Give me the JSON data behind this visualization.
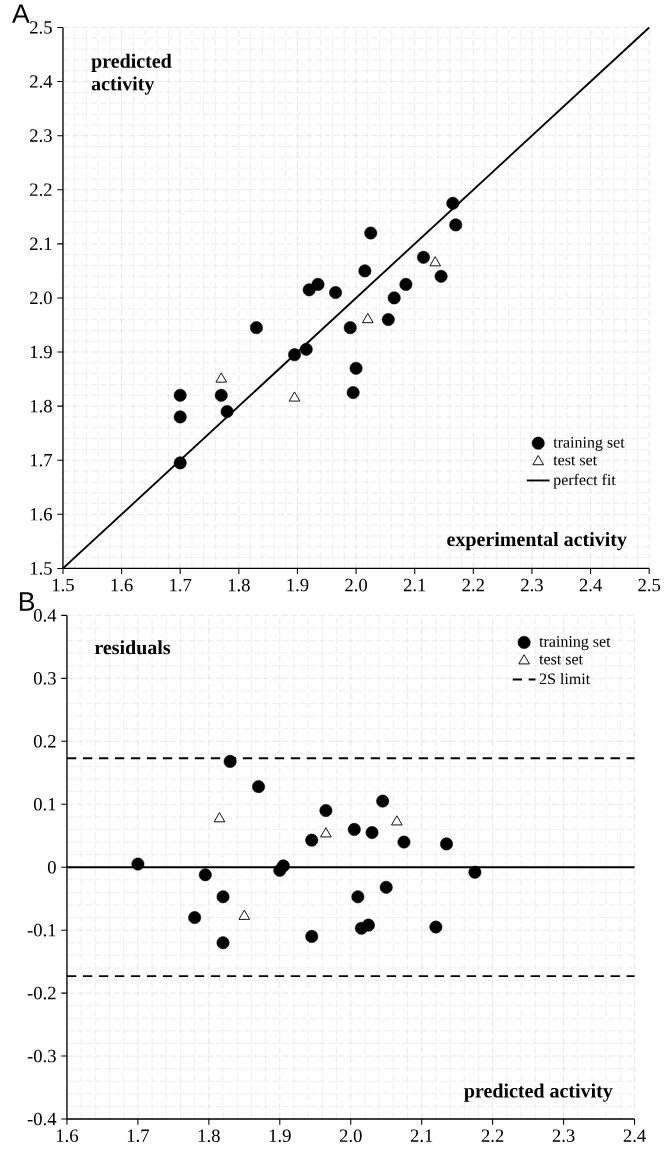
{
  "chart_data": [
    {
      "type": "scatter",
      "title": "A",
      "xlabel": "experimental activity",
      "ylabel": "predicted activity",
      "xlim": [
        1.5,
        2.5
      ],
      "ylim": [
        1.5,
        2.5
      ],
      "xticks": [
        {
          "value": 1.5,
          "label": "1.5"
        },
        {
          "value": 1.6,
          "label": "1.6"
        },
        {
          "value": 1.7,
          "label": "1.7"
        },
        {
          "value": 1.8,
          "label": "1.8"
        },
        {
          "value": 1.9,
          "label": "1.9"
        },
        {
          "value": 2.0,
          "label": "2.0"
        },
        {
          "value": 2.1,
          "label": "2.1"
        },
        {
          "value": 2.2,
          "label": "2.2"
        },
        {
          "value": 2.3,
          "label": "2.3"
        },
        {
          "value": 2.4,
          "label": "2.4"
        },
        {
          "value": 2.5,
          "label": "2.5"
        }
      ],
      "yticks": [
        {
          "value": 1.5,
          "label": "1.5"
        },
        {
          "value": 1.6,
          "label": "1.6"
        },
        {
          "value": 1.7,
          "label": "1.7"
        },
        {
          "value": 1.8,
          "label": "1.8"
        },
        {
          "value": 1.9,
          "label": "1.9"
        },
        {
          "value": 2.0,
          "label": "2.0"
        },
        {
          "value": 2.1,
          "label": "2.1"
        },
        {
          "value": 2.2,
          "label": "2.2"
        },
        {
          "value": 2.3,
          "label": "2.3"
        },
        {
          "value": 2.4,
          "label": "2.4"
        },
        {
          "value": 2.5,
          "label": "2.5"
        }
      ],
      "grid": true,
      "legend": "bottom right",
      "series": [
        {
          "name": "training set",
          "type": "scatter",
          "marker": "circle",
          "color": "#000000",
          "x": [
            1.7,
            1.7,
            1.7,
            1.77,
            1.78,
            1.83,
            1.895,
            1.915,
            1.92,
            1.935,
            1.965,
            1.99,
            1.995,
            2.0,
            2.015,
            2.025,
            2.055,
            2.065,
            2.085,
            2.115,
            2.145,
            2.165,
            2.17
          ],
          "values": [
            1.82,
            1.78,
            1.695,
            1.82,
            1.79,
            1.945,
            1.895,
            1.905,
            2.015,
            2.025,
            2.01,
            1.945,
            1.825,
            1.87,
            2.05,
            2.12,
            1.96,
            2.0,
            2.025,
            2.075,
            2.04,
            2.175,
            2.135
          ]
        },
        {
          "name": "test set",
          "type": "scatter",
          "marker": "triangle",
          "color": "#000000",
          "x": [
            1.77,
            1.895,
            2.02,
            2.135
          ],
          "values": [
            1.85,
            1.815,
            1.96,
            2.065
          ]
        },
        {
          "name": "perfect fit",
          "type": "line",
          "marker": "none",
          "line_style": "solid",
          "color": "#000000",
          "x": [
            1.5,
            2.5
          ],
          "values": [
            1.5,
            2.5
          ]
        }
      ]
    },
    {
      "type": "scatter",
      "title": "B",
      "xlabel": "predicted  activity",
      "ylabel": "residuals",
      "xlim": [
        1.6,
        2.4
      ],
      "ylim": [
        -0.4,
        0.4
      ],
      "xticks": [
        {
          "value": 1.6,
          "label": "1.6"
        },
        {
          "value": 1.7,
          "label": "1.7"
        },
        {
          "value": 1.8,
          "label": "1.8"
        },
        {
          "value": 1.9,
          "label": "1.9"
        },
        {
          "value": 2.0,
          "label": "2.0"
        },
        {
          "value": 2.1,
          "label": "2.1"
        },
        {
          "value": 2.2,
          "label": "2.2"
        },
        {
          "value": 2.3,
          "label": "2.3"
        },
        {
          "value": 2.4,
          "label": "2.4"
        }
      ],
      "yticks": [
        {
          "value": -0.4,
          "label": "-0.4"
        },
        {
          "value": -0.3,
          "label": "-0.3"
        },
        {
          "value": -0.2,
          "label": "-0.2"
        },
        {
          "value": -0.1,
          "label": "-0.1"
        },
        {
          "value": 0,
          "label": "0"
        },
        {
          "value": 0.1,
          "label": "0.1"
        },
        {
          "value": 0.2,
          "label": "0.2"
        },
        {
          "value": 0.3,
          "label": "0.3"
        },
        {
          "value": 0.4,
          "label": "0.4"
        }
      ],
      "grid": true,
      "legend": "top right",
      "series": [
        {
          "name": "training set",
          "type": "scatter",
          "marker": "circle",
          "color": "#000000",
          "x": [
            1.7,
            1.795,
            1.78,
            1.82,
            1.82,
            1.83,
            1.87,
            1.9,
            1.905,
            1.945,
            1.945,
            1.965,
            2.005,
            2.01,
            2.015,
            2.025,
            2.03,
            2.045,
            2.05,
            2.075,
            2.12,
            2.135,
            2.175
          ],
          "values": [
            0.005,
            -0.012,
            -0.08,
            -0.047,
            -0.12,
            0.168,
            0.128,
            -0.005,
            0.002,
            0.043,
            -0.11,
            0.09,
            0.06,
            -0.047,
            -0.097,
            -0.092,
            0.055,
            0.105,
            -0.032,
            0.04,
            -0.095,
            0.037,
            -0.008
          ]
        },
        {
          "name": "test set",
          "type": "scatter",
          "marker": "triangle",
          "color": "#000000",
          "x": [
            1.815,
            1.85,
            1.965,
            2.065
          ],
          "values": [
            0.077,
            -0.078,
            0.053,
            0.072
          ]
        }
      ],
      "ref_lines": [
        {
          "axis": "y",
          "value": 0.173,
          "label": "2S limit",
          "line_style": "dashed",
          "color": "#000000"
        },
        {
          "axis": "y",
          "value": -0.173,
          "line_style": "dashed",
          "color": "#000000"
        },
        {
          "axis": "y",
          "value": 0,
          "line_style": "solid",
          "color": "#000000"
        }
      ]
    }
  ]
}
